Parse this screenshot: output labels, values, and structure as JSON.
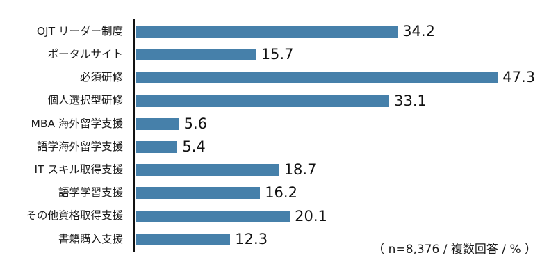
{
  "chart_data": {
    "type": "bar",
    "orientation": "horizontal",
    "title": "",
    "xlabel": "",
    "ylabel": "",
    "xlim": [
      0,
      50
    ],
    "grid": false,
    "legend": false,
    "bar_color": "#4680aa",
    "axis_color": "#111111",
    "categories": [
      "OJT リーダー制度",
      "ポータルサイト",
      "必須研修",
      "個人選択型研修",
      "MBA 海外留学支援",
      "語学海外留学支援",
      "IT スキル取得支援",
      "語学学習支援",
      "その他資格取得支援",
      "書籍購入支援"
    ],
    "values": [
      34.2,
      15.7,
      47.3,
      33.1,
      5.6,
      5.4,
      18.7,
      16.2,
      20.1,
      12.3
    ],
    "note": "（ n=8,376 / 複数回答 / % ）"
  }
}
